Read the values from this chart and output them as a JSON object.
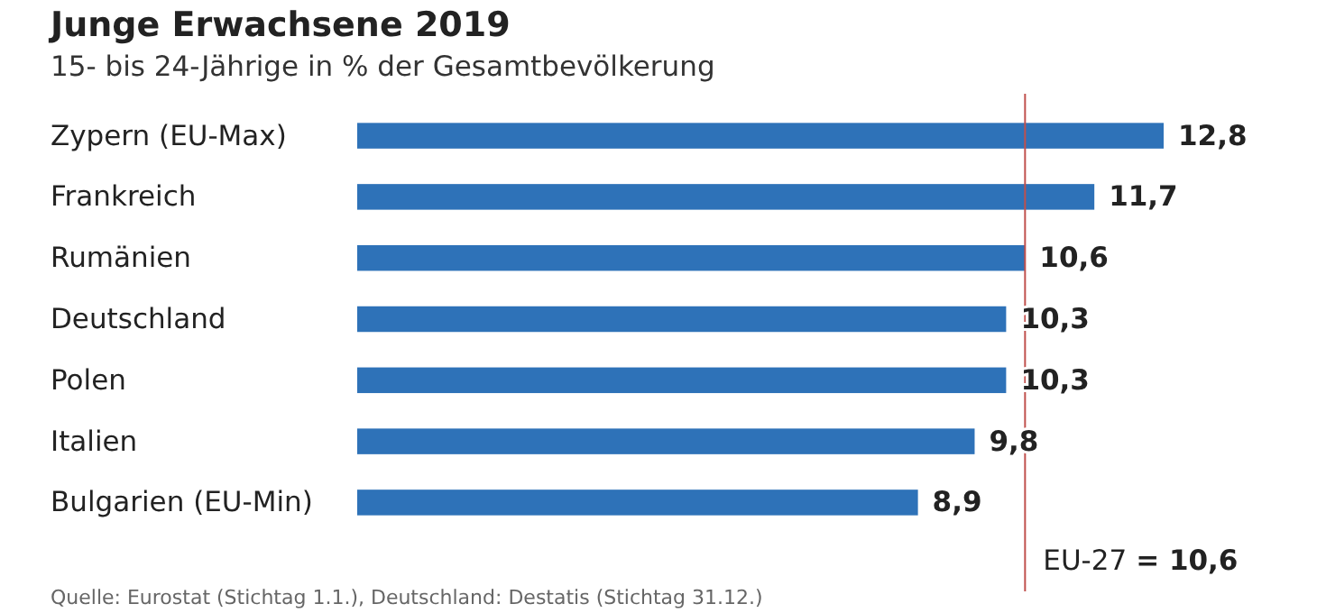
{
  "chart_data": {
    "type": "bar",
    "orientation": "horizontal",
    "title": "Junge Erwachsene 2019",
    "subtitle": "15- bis 24-Jährige in % der Gesamtbevölkerung",
    "categories": [
      "Zypern (EU-Max)",
      "Frankreich",
      "Rumänien",
      "Deutschland",
      "Polen",
      "Italien",
      "Bulgarien (EU-Min)"
    ],
    "values": [
      12.8,
      11.7,
      10.6,
      10.3,
      10.3,
      9.8,
      8.9
    ],
    "value_labels": [
      "12,8",
      "11,7",
      "10,6",
      "10,3",
      "10,3",
      "9,8",
      "8,9"
    ],
    "color": "#2e72b8",
    "tick_labels": "y",
    "ref_lines": [
      {
        "axis": "x",
        "value": 10.6,
        "label": "EU-27 = 10,6",
        "color": "#c0504d"
      }
    ],
    "annotations": [
      "Quelle: Eurostat (Stichtag 1.1.), Deutschland: Destatis (Stichtag 31.12.)"
    ]
  }
}
